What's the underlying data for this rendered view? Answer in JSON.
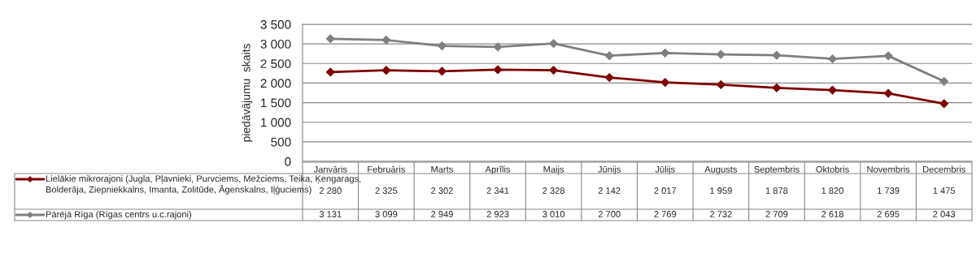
{
  "chart_data": {
    "type": "line",
    "ylabel": "piedāvājumu  skaits",
    "categories": [
      "Janvāris",
      "Februāris",
      "Marts",
      "Aprīlis",
      "Maijs",
      "Jūnijs",
      "Jūlijs",
      "Augusts",
      "Septembris",
      "Oktobris",
      "Novembris",
      "Decembris"
    ],
    "series": [
      {
        "name": "Lielākie mikrorajoni (Jugla, Pļavnieki, Purvciems, Mežciems, Teika, Ķengarags, Bolderāja, Ziepniekkalns, Imanta, Zolitūde, Āgenskalns, Iļģuciems)",
        "color": "#7f0000",
        "values": [
          2280,
          2325,
          2302,
          2341,
          2328,
          2142,
          2017,
          1959,
          1878,
          1820,
          1739,
          1475
        ],
        "value_labels": [
          "2 280",
          "2 325",
          "2 302",
          "2 341",
          "2 328",
          "2 142",
          "2 017",
          "1 959",
          "1 878",
          "1 820",
          "1 739",
          "1 475"
        ]
      },
      {
        "name": "Pārējā Rīga (Rīgas centrs u.c.rajoni)",
        "color": "#7f7f7f",
        "values": [
          3131,
          3099,
          2949,
          2923,
          3010,
          2700,
          2769,
          2732,
          2709,
          2618,
          2695,
          2043
        ],
        "value_labels": [
          "3 131",
          "3 099",
          "2 949",
          "2 923",
          "3 010",
          "2 700",
          "2 769",
          "2 732",
          "2 709",
          "2 618",
          "2 695",
          "2 043"
        ]
      }
    ],
    "ylim": [
      0,
      3500
    ],
    "yticks": [
      0,
      500,
      {
        "value": 1000,
        "label": "1 000"
      },
      {
        "value": 1500,
        "label": "1 500"
      },
      {
        "value": 2000,
        "label": "2 000"
      },
      {
        "value": 2500,
        "label": "2 500"
      },
      {
        "value": 3000,
        "label": "3 000"
      },
      {
        "value": 3500,
        "label": "3 500"
      }
    ],
    "grid": "y",
    "legend": "bottom",
    "marker": "diamond",
    "line_style": "solid"
  }
}
